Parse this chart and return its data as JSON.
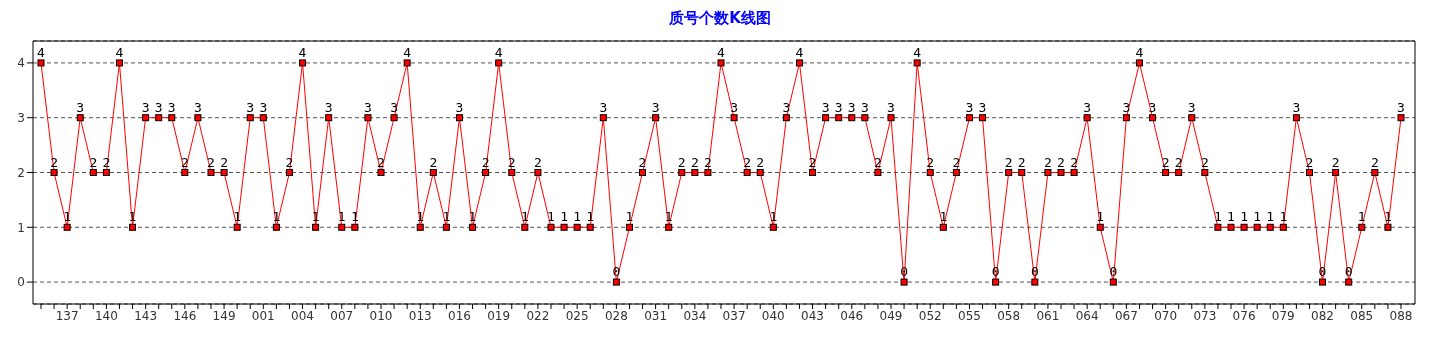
{
  "chart_data": {
    "type": "line",
    "title": "质号个数K线图",
    "categories": [
      null,
      null,
      "137",
      null,
      null,
      "140",
      null,
      null,
      "143",
      null,
      null,
      "146",
      null,
      null,
      "149",
      null,
      null,
      "001",
      null,
      null,
      "004",
      null,
      null,
      "007",
      null,
      null,
      "010",
      null,
      null,
      "013",
      null,
      null,
      "016",
      null,
      null,
      "019",
      null,
      null,
      "022",
      null,
      null,
      "025",
      null,
      null,
      "028",
      null,
      null,
      "031",
      null,
      null,
      "034",
      null,
      null,
      "037",
      null,
      null,
      "040",
      null,
      null,
      "043",
      null,
      null,
      "046",
      null,
      null,
      "049",
      null,
      null,
      "052",
      null,
      null,
      "055",
      null,
      null,
      "058",
      null,
      null,
      "061",
      null,
      null,
      "064",
      null,
      null,
      "067",
      null,
      null,
      "070",
      null,
      null,
      "073",
      null,
      null,
      "076",
      null,
      null,
      "079",
      null,
      null,
      "082",
      null,
      null,
      "085",
      null,
      null,
      "088"
    ],
    "series": [
      {
        "color": "#ff0000",
        "values": [
          4,
          2,
          1,
          3,
          2,
          2,
          4,
          1,
          3,
          3,
          3,
          2,
          3,
          2,
          2,
          1,
          3,
          3,
          1,
          2,
          4,
          1,
          3,
          1,
          1,
          3,
          2,
          3,
          4,
          1,
          2,
          1,
          3,
          1,
          2,
          4,
          2,
          1,
          2,
          1,
          1,
          1,
          1,
          3,
          0,
          1,
          2,
          3,
          1,
          2,
          2,
          2,
          4,
          3,
          2,
          2,
          1,
          3,
          4,
          2,
          3,
          3,
          3,
          3,
          2,
          3,
          0,
          4,
          2,
          1,
          2,
          3,
          3,
          0,
          2,
          2,
          0,
          2,
          2,
          2,
          3,
          1,
          0,
          3,
          4,
          3,
          2,
          2,
          3,
          2,
          1,
          1,
          1,
          1,
          1,
          1,
          3,
          2,
          0,
          2,
          0,
          1,
          2,
          1,
          3
        ]
      }
    ],
    "ylim": [
      -0.4,
      4.4
    ],
    "yticks": [
      0,
      1,
      2,
      3,
      4
    ],
    "grid": "y",
    "marker": "square",
    "line_style": "solid",
    "data_labels": true,
    "legend": false
  }
}
